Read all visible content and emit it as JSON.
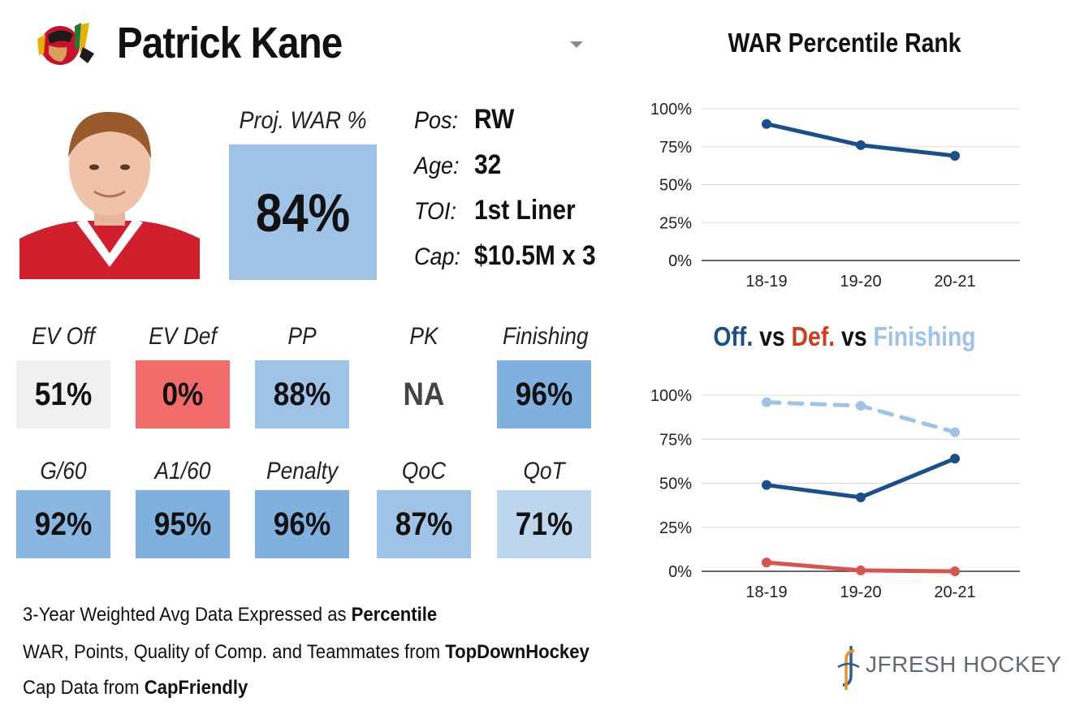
{
  "header": {
    "player_name": "Patrick Kane",
    "team_logo_icon": "chicago-blackhawks-logo-icon",
    "dropdown_icon": "caret-down-icon"
  },
  "projection": {
    "label": "Proj. WAR %",
    "value": "84%",
    "color": "#9fc3e6"
  },
  "info": {
    "pos_label": "Pos:",
    "pos_value": "RW",
    "age_label": "Age:",
    "age_value": "32",
    "toi_label": "TOI:",
    "toi_value": "1st Liner",
    "cap_label": "Cap:",
    "cap_value": "$10.5M x 3"
  },
  "stats_row1": [
    {
      "label": "EV Off",
      "value": "51%",
      "color": "#eff0f2"
    },
    {
      "label": "EV Def",
      "value": "0%",
      "color": "#f36c6c"
    },
    {
      "label": "PP",
      "value": "88%",
      "color": "#9fc3e6"
    },
    {
      "label": "PK",
      "value": "NA",
      "color": "#ffffff"
    },
    {
      "label": "Finishing",
      "value": "96%",
      "color": "#7fb0de"
    }
  ],
  "stats_row2": [
    {
      "label": "G/60",
      "value": "92%",
      "color": "#8ab7e2"
    },
    {
      "label": "A1/60",
      "value": "95%",
      "color": "#80b1de"
    },
    {
      "label": "Penalty",
      "value": "96%",
      "color": "#7fb0de"
    },
    {
      "label": "QoC",
      "value": "87%",
      "color": "#9fc3e6"
    },
    {
      "label": "QoT",
      "value": "71%",
      "color": "#bcd6ee"
    }
  ],
  "footer": {
    "line1_prefix": "3-Year Weighted Avg Data Expressed as ",
    "line1_bold": "Percentile",
    "line2_prefix": "WAR, Points, Quality of Comp. and Teammates from ",
    "line2_bold": "TopDownHockey",
    "line3_prefix": "Cap Data from ",
    "line3_bold": "CapFriendly"
  },
  "brand": {
    "name": "JFRESH HOCKEY",
    "icon": "jfresh-hockey-logo-icon"
  },
  "chart_titles": {
    "c2_off": "Off.",
    "c2_vs1": " vs ",
    "c2_def": "Def.",
    "c2_vs2": " vs ",
    "c2_fin": "Finishing"
  },
  "colors": {
    "off": "#1a4f8b",
    "def": "#d9534f",
    "fin": "#9fc3e6",
    "title_def": "#d23a1e"
  },
  "chart_data": [
    {
      "type": "line",
      "title": "WAR Percentile Rank",
      "x": [
        "18-19",
        "19-20",
        "20-21"
      ],
      "yticks": [
        "0%",
        "25%",
        "50%",
        "75%",
        "100%"
      ],
      "ylim": [
        0,
        100
      ],
      "grid": true,
      "series": [
        {
          "values": [
            90,
            76,
            69
          ],
          "color": "#1a4f8b",
          "dash": false
        }
      ]
    },
    {
      "type": "line",
      "title": "Off. vs Def. vs Finishing",
      "x": [
        "18-19",
        "19-20",
        "20-21"
      ],
      "yticks": [
        "0%",
        "25%",
        "50%",
        "75%",
        "100%"
      ],
      "ylim": [
        0,
        100
      ],
      "grid": true,
      "series": [
        {
          "name": "Off.",
          "values": [
            49,
            42,
            64
          ],
          "color": "#1a4f8b",
          "dash": false
        },
        {
          "name": "Def.",
          "values": [
            5,
            0.5,
            0
          ],
          "color": "#d9534f",
          "dash": false
        },
        {
          "name": "Finishing",
          "values": [
            96,
            94,
            79
          ],
          "color": "#9fc3e6",
          "dash": true
        }
      ]
    }
  ]
}
